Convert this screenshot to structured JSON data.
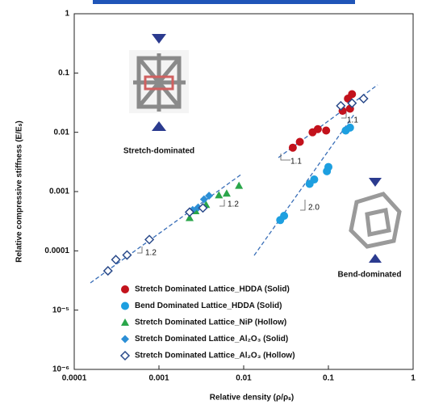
{
  "chart_data": {
    "type": "scatter",
    "xlabel": "Relative density (ρ/ρₛ)",
    "ylabel": "Relative compressive stiffness (E/Eₛ)",
    "xscale": "log",
    "yscale": "log",
    "xlim": [
      0.0001,
      1
    ],
    "ylim": [
      1e-06,
      1
    ],
    "xticks": [
      0.0001,
      0.001,
      0.01,
      0.1,
      1
    ],
    "yticks": [
      {
        "value": 1e-06,
        "label": "10⁻⁶"
      },
      {
        "value": 1e-05,
        "label": "10⁻⁵"
      },
      0.0001,
      0.001,
      0.01,
      0.1,
      1
    ],
    "legend": "lower center",
    "series": [
      {
        "name": "Stretch Dominated Lattice_HDDA (Solid)",
        "color": "#c3121c",
        "marker": "circle",
        "x": [
          0.038,
          0.046,
          0.065,
          0.075,
          0.094,
          0.147,
          0.18,
          0.17,
          0.19
        ],
        "values": [
          0.0055,
          0.0069,
          0.01,
          0.0113,
          0.0107,
          0.023,
          0.025,
          0.037,
          0.044
        ]
      },
      {
        "name": "Bend Dominated Lattice_HDDA (Solid)",
        "color": "#1d9fe0",
        "marker": "circle",
        "x": [
          0.027,
          0.03,
          0.06,
          0.068,
          0.096,
          0.1,
          0.16,
          0.18
        ],
        "values": [
          0.00033,
          0.00039,
          0.00135,
          0.0016,
          0.0022,
          0.0026,
          0.0107,
          0.012
        ]
      },
      {
        "name": "Stretch Dominated Lattice_NiP (Hollow)",
        "color": "#2aa64a",
        "marker": "triangle",
        "x": [
          0.0023,
          0.0027,
          0.0036,
          0.0051,
          0.0063,
          0.0088
        ],
        "values": [
          0.00036,
          0.00047,
          0.0006,
          0.00087,
          0.00093,
          0.00126
        ]
      },
      {
        "name": "Stretch Dominated Lattice_Al₂O₃ (Solid)",
        "color": "#2c8fd6",
        "marker": "diamond",
        "x": [
          0.0025,
          0.0029,
          0.0034,
          0.0039
        ],
        "values": [
          0.00049,
          0.00054,
          0.00074,
          0.00085
        ]
      },
      {
        "name": "Stretch Dominated Lattice_Al₂O₃ (Hollow)",
        "color": "#2a4a8a",
        "marker": "diamond-open",
        "x": [
          0.00025,
          0.00031,
          0.00042,
          0.00077,
          0.0023,
          0.0033,
          0.14,
          0.19,
          0.26
        ],
        "values": [
          4.6e-05,
          7.1e-05,
          8.5e-05,
          0.000155,
          0.00045,
          0.00053,
          0.028,
          0.031,
          0.037
        ]
      }
    ],
    "annotations": [
      "1.1",
      "1.1",
      "1.2",
      "1.2",
      "2.0",
      "Stretch-dominated",
      "Bend-dominated"
    ]
  }
}
